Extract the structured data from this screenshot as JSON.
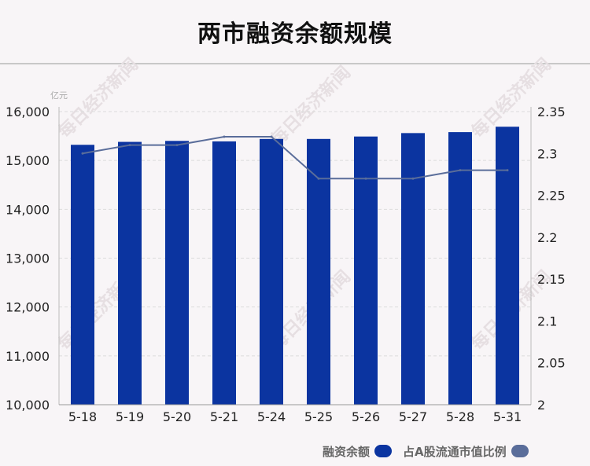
{
  "title": "两市融资余额规模",
  "unit_label": "亿元",
  "watermark": "每日经济新闻",
  "colors": {
    "bar": "#0b34a0",
    "line": "#5a6d9a",
    "grid": "#dcdcdc",
    "axis_text": "#222222",
    "watermark": "#e6dfe2"
  },
  "legend": {
    "bar_label": "融资余额",
    "line_label": "占A股流通市值比例"
  },
  "chart_data": {
    "type": "bar",
    "categories": [
      "5-18",
      "5-19",
      "5-20",
      "5-21",
      "5-24",
      "5-25",
      "5-26",
      "5-27",
      "5-28",
      "5-31"
    ],
    "series": [
      {
        "name": "融资余额",
        "type": "bar",
        "axis": "left",
        "values": [
          15320,
          15380,
          15400,
          15390,
          15440,
          15440,
          15490,
          15560,
          15580,
          15690
        ]
      },
      {
        "name": "占A股流通市值比例",
        "type": "line",
        "axis": "right",
        "values": [
          2.3,
          2.31,
          2.31,
          2.32,
          2.32,
          2.27,
          2.27,
          2.27,
          2.28,
          2.28
        ]
      }
    ],
    "y_left": {
      "range": [
        10000,
        16000
      ],
      "ticks": [
        10000,
        11000,
        12000,
        13000,
        14000,
        15000,
        16000
      ],
      "tick_labels": [
        "10,000",
        "11,000",
        "12,000",
        "13,000",
        "14,000",
        "15,000",
        "16,000"
      ]
    },
    "y_right": {
      "range": [
        2,
        2.35
      ],
      "ticks": [
        2,
        2.05,
        2.1,
        2.15,
        2.2,
        2.25,
        2.3,
        2.35
      ],
      "tick_labels": [
        "2",
        "2.05",
        "2.1",
        "2.15",
        "2.2",
        "2.25",
        "2.3",
        "2.35"
      ]
    },
    "grid": "horizontal-dashed",
    "legend_position": "bottom-right"
  }
}
